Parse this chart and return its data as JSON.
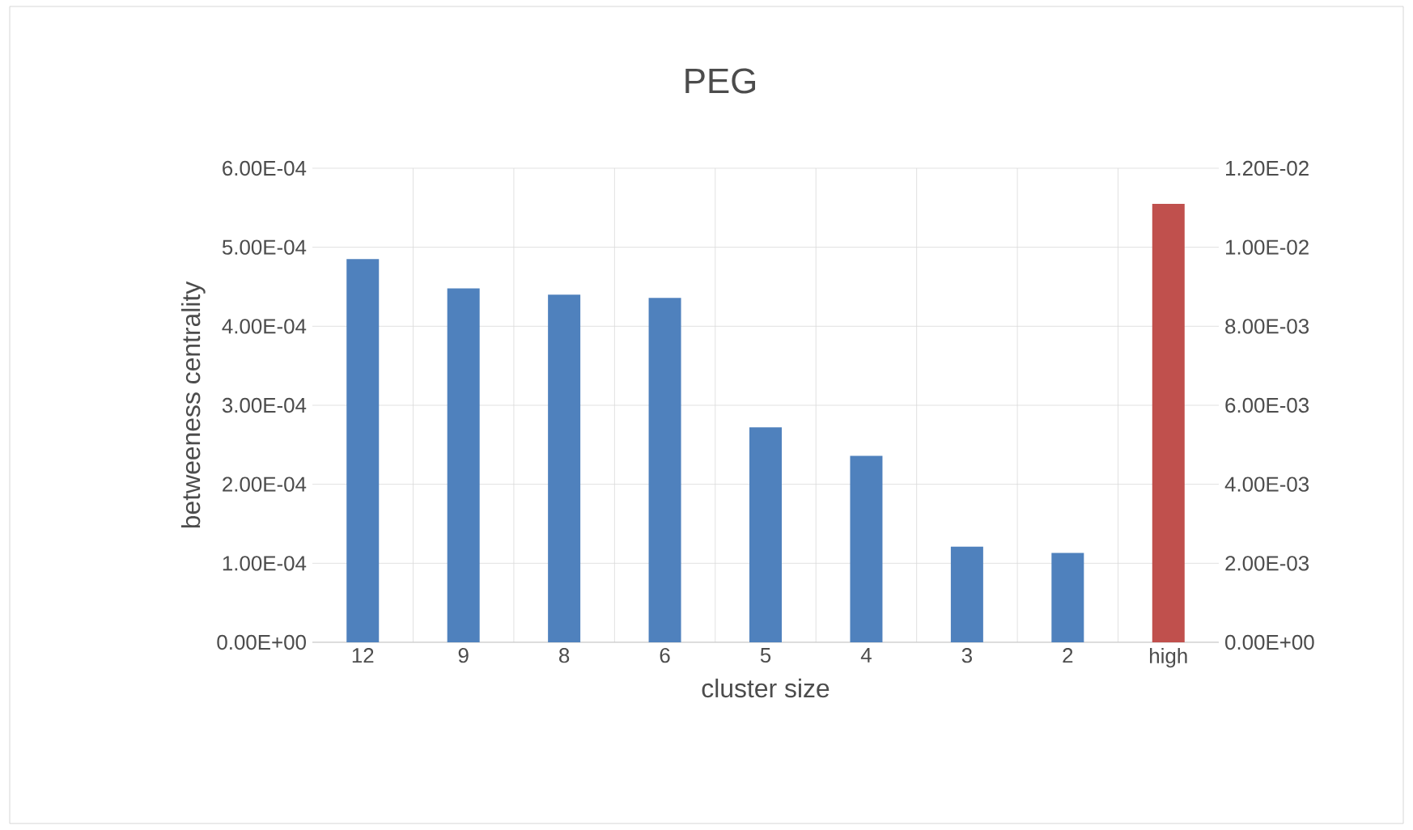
{
  "chart_data": {
    "type": "bar",
    "title": "PEG",
    "xlabel": "cluster size",
    "ylabel": "betweeness centrality",
    "categories": [
      "12",
      "9",
      "8",
      "6",
      "5",
      "4",
      "3",
      "2",
      "high"
    ],
    "series": [
      {
        "color": "#4f81bd",
        "values": [
          0.000485,
          0.000448,
          0.00044,
          0.000436,
          0.000272,
          0.000236,
          0.000121,
          0.000113,
          null
        ]
      },
      {
        "color": "#c0504d",
        "axis": "y2",
        "values": [
          null,
          null,
          null,
          null,
          null,
          null,
          null,
          null,
          0.0111
        ]
      }
    ],
    "ylim": [
      0,
      0.0006
    ],
    "yticks": [
      {
        "value": 0,
        "label": "0.00E+00"
      },
      {
        "value": 0.0001,
        "label": "1.00E-04"
      },
      {
        "value": 0.0002,
        "label": "2.00E-04"
      },
      {
        "value": 0.0003,
        "label": "3.00E-04"
      },
      {
        "value": 0.0004,
        "label": "4.00E-04"
      },
      {
        "value": 0.0005,
        "label": "5.00E-04"
      },
      {
        "value": 0.0006,
        "label": "6.00E-04"
      }
    ],
    "y2lim": [
      0,
      0.012
    ],
    "y2ticks": [
      {
        "value": 0,
        "label": "0.00E+00"
      },
      {
        "value": 0.002,
        "label": "2.00E-03"
      },
      {
        "value": 0.004,
        "label": "4.00E-03"
      },
      {
        "value": 0.006,
        "label": "6.00E-03"
      },
      {
        "value": 0.008,
        "label": "8.00E-03"
      },
      {
        "value": 0.01,
        "label": "1.00E-02"
      },
      {
        "value": 0.012,
        "label": "1.20E-02"
      }
    ],
    "grid": true
  }
}
